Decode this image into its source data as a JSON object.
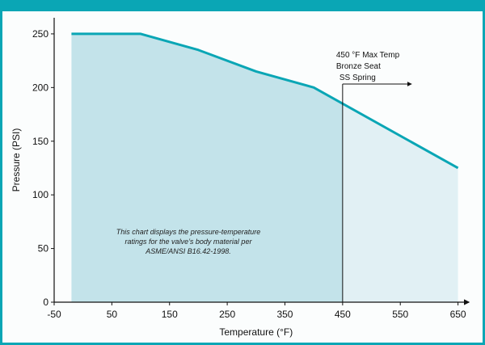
{
  "chart_data": {
    "type": "area",
    "title": "",
    "xlabel": "Temperature (°F)",
    "ylabel": "Pressure (PSI)",
    "xlim": [
      -50,
      680
    ],
    "ylim": [
      0,
      265
    ],
    "x_ticks": [
      -50,
      50,
      150,
      250,
      350,
      450,
      550,
      650
    ],
    "y_ticks": [
      0,
      50,
      100,
      150,
      200,
      250
    ],
    "grid": false,
    "series": [
      {
        "x": [
          -20,
          100,
          200,
          300,
          400,
          650
        ],
        "y": [
          250,
          250,
          235,
          215,
          200,
          125
        ]
      }
    ],
    "threshold": {
      "x": 450,
      "lines": [
        "450 °F Max Temp",
        "Bronze Seat",
        "SS Spring"
      ]
    },
    "note": [
      "This chart displays the pressure-temperature",
      "ratings  for the valve’s body material per",
      "ASME/ANSI B16.42-1998."
    ],
    "colors": {
      "line": "#0aa6b5",
      "fill_in_range": "#c3e3ea",
      "fill_out_range": "#e1f0f4",
      "frame": "#0aa6b5"
    }
  }
}
